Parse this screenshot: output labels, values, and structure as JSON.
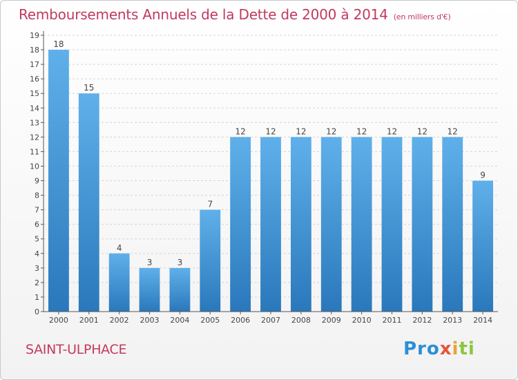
{
  "chart_data": {
    "type": "bar",
    "title": "Remboursements Annuels de la Dette de 2000 à 2014",
    "unit": "(en milliers d'€)",
    "categories": [
      "2000",
      "2001",
      "2002",
      "2003",
      "2004",
      "2005",
      "2006",
      "2007",
      "2008",
      "2009",
      "2010",
      "2011",
      "2012",
      "2013",
      "2014"
    ],
    "values": [
      18,
      15,
      4,
      3,
      3,
      7,
      12,
      12,
      12,
      12,
      12,
      12,
      12,
      12,
      9
    ],
    "ylim": [
      0,
      19
    ],
    "yticks": [
      0,
      1,
      2,
      3,
      4,
      5,
      6,
      7,
      8,
      9,
      10,
      11,
      12,
      13,
      14,
      15,
      16,
      17,
      18,
      19
    ],
    "grid": true,
    "bar_color": "#3f95d6"
  },
  "footer": {
    "commune": "SAINT-ULPHACE",
    "logo": [
      "Pro",
      "x",
      "i",
      "ti"
    ]
  }
}
